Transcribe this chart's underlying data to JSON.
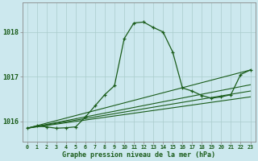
{
  "background_color": "#cce8ee",
  "grid_color": "#aacccc",
  "line_color": "#1a5c1a",
  "xlabel": "Graphe pression niveau de la mer (hPa)",
  "xlabel_color": "#1a5c1a",
  "ylabel_ticks": [
    1016,
    1017,
    1018
  ],
  "xlim": [
    -0.5,
    23.5
  ],
  "ylim": [
    1015.55,
    1018.65
  ],
  "curve_hours": [
    0,
    1,
    2,
    3,
    4,
    5,
    6,
    7,
    8,
    9,
    10,
    11,
    12,
    13,
    14,
    15,
    16,
    17,
    18,
    19,
    20,
    21,
    22,
    23
  ],
  "curve_vals": [
    1015.85,
    1015.9,
    1015.88,
    1015.85,
    1015.86,
    1015.88,
    1016.1,
    1016.35,
    1016.6,
    1016.8,
    1017.85,
    1018.2,
    1018.22,
    1018.1,
    1018.0,
    1017.55,
    1016.75,
    1016.68,
    1016.58,
    1016.52,
    1016.55,
    1016.6,
    1017.05,
    1017.15
  ],
  "flat1_hours": [
    0,
    23
  ],
  "flat1_vals": [
    1015.85,
    1016.55
  ],
  "flat2_hours": [
    0,
    23
  ],
  "flat2_vals": [
    1015.85,
    1016.68
  ],
  "flat3_hours": [
    0,
    23
  ],
  "flat3_vals": [
    1015.85,
    1016.82
  ],
  "flat4_hours": [
    0,
    23
  ],
  "flat4_vals": [
    1015.85,
    1017.15
  ],
  "xtick_labels": [
    "0",
    "1",
    "2",
    "3",
    "4",
    "5",
    "6",
    "7",
    "8",
    "9",
    "10",
    "11",
    "12",
    "13",
    "14",
    "15",
    "16",
    "17",
    "18",
    "19",
    "20",
    "21",
    "22",
    "23"
  ]
}
